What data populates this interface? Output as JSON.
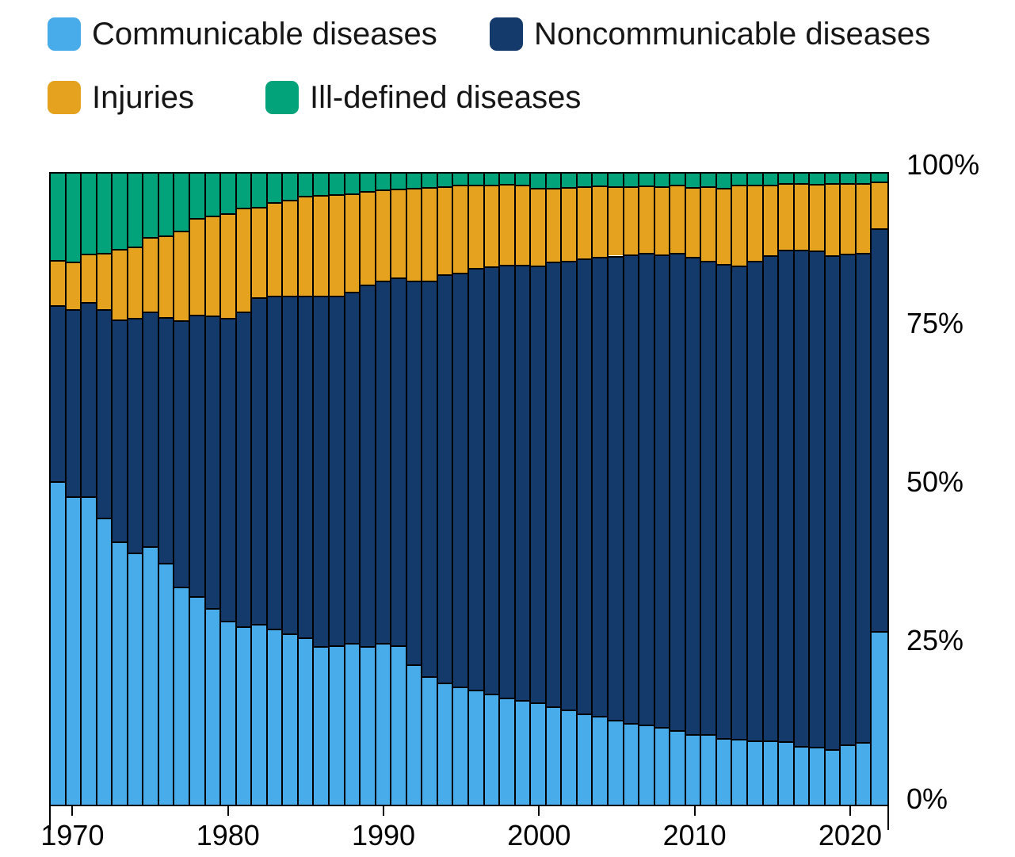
{
  "legend": {
    "items": [
      {
        "label": "Communicable diseases",
        "key": "communicable"
      },
      {
        "label": "Noncommunicable diseases",
        "key": "noncommunicable"
      },
      {
        "label": "Injuries",
        "key": "injuries"
      },
      {
        "label": "Ill-defined diseases",
        "key": "ill_defined"
      }
    ]
  },
  "colors": {
    "communicable": "#47ACE9",
    "noncommunicable": "#14396B",
    "injuries": "#E5A21E",
    "ill_defined": "#02A27A",
    "outline": "#000000",
    "text": "#161616"
  },
  "y_axis": {
    "tick_labels": [
      "100%",
      "75%",
      "50%",
      "25%",
      "0%"
    ],
    "tick_values": [
      100,
      75,
      50,
      25,
      0
    ]
  },
  "x_axis": {
    "tick_labels": [
      "1970",
      "1980",
      "1990",
      "2000",
      "2010",
      "2020"
    ],
    "tick_values": [
      1970,
      1980,
      1990,
      2000,
      2010,
      2020
    ]
  },
  "chart_data": {
    "type": "bar",
    "variant": "stacked-100-percent",
    "stack_order_bottom_to_top": [
      "Communicable diseases",
      "Noncommunicable diseases",
      "Injuries",
      "Ill-defined diseases"
    ],
    "x": [
      1969,
      1970,
      1971,
      1972,
      1973,
      1974,
      1975,
      1976,
      1977,
      1978,
      1979,
      1980,
      1981,
      1982,
      1983,
      1984,
      1985,
      1986,
      1987,
      1988,
      1989,
      1990,
      1991,
      1992,
      1993,
      1994,
      1995,
      1996,
      1997,
      1998,
      1999,
      2000,
      2001,
      2002,
      2003,
      2004,
      2005,
      2006,
      2007,
      2008,
      2009,
      2010,
      2011,
      2012,
      2013,
      2014,
      2015,
      2016,
      2017,
      2018,
      2019,
      2020,
      2021,
      2022
    ],
    "series": [
      {
        "name": "Communicable diseases",
        "color_key": "communicable",
        "values": [
          51.3,
          48.9,
          48.9,
          45.5,
          41.7,
          39.9,
          41.0,
          38.3,
          34.6,
          33.0,
          31.2,
          29.1,
          28.3,
          28.6,
          27.9,
          27.2,
          26.5,
          25.1,
          25.3,
          25.6,
          25.1,
          25.6,
          25.2,
          22.2,
          20.3,
          19.4,
          18.7,
          18.2,
          17.6,
          16.9,
          16.6,
          16.2,
          15.6,
          15.1,
          14.4,
          14.1,
          13.4,
          12.9,
          12.7,
          12.3,
          11.8,
          11.2,
          11.2,
          10.5,
          10.4,
          10.2,
          10.2,
          10.0,
          9.3,
          9.2,
          8.8,
          9.6,
          9.9,
          27.5
        ]
      },
      {
        "name": "Noncommunicable diseases",
        "color_key": "noncommunicable",
        "values": [
          27.9,
          29.6,
          30.8,
          33.0,
          35.2,
          37.2,
          37.1,
          39.0,
          42.2,
          44.7,
          46.3,
          48.0,
          49.8,
          51.8,
          52.8,
          53.4,
          54.1,
          55.5,
          55.3,
          55.7,
          57.3,
          57.5,
          58.3,
          60.9,
          62.7,
          64.6,
          65.6,
          66.8,
          67.7,
          68.6,
          69.0,
          69.2,
          70.4,
          71.1,
          72.1,
          72.7,
          73.6,
          74.3,
          74.7,
          74.9,
          75.7,
          75.6,
          75.0,
          75.2,
          75.0,
          76.0,
          76.9,
          78.0,
          78.6,
          78.6,
          78.3,
          77.7,
          77.6,
          63.8
        ]
      },
      {
        "name": "Injuries",
        "color_key": "injuries",
        "values": [
          7.1,
          7.6,
          7.6,
          9.0,
          11.2,
          11.4,
          11.8,
          12.9,
          14.2,
          15.3,
          15.8,
          16.6,
          16.5,
          14.3,
          14.8,
          15.2,
          15.9,
          16.0,
          16.1,
          15.6,
          14.8,
          14.4,
          14.1,
          14.7,
          14.9,
          14.0,
          13.9,
          13.3,
          13.0,
          12.9,
          12.7,
          12.3,
          11.8,
          11.7,
          11.5,
          11.3,
          11.0,
          10.8,
          10.7,
          10.8,
          10.7,
          11.1,
          11.8,
          12.1,
          12.9,
          12.1,
          11.2,
          10.5,
          10.6,
          10.6,
          11.4,
          11.2,
          11.0,
          7.5
        ]
      },
      {
        "name": "Ill-defined diseases",
        "color_key": "ill_defined",
        "values": [
          13.7,
          13.9,
          12.7,
          12.5,
          11.9,
          11.5,
          10.1,
          9.8,
          9.0,
          7.0,
          6.7,
          6.3,
          5.4,
          5.3,
          4.5,
          4.2,
          3.5,
          3.4,
          3.3,
          3.1,
          2.8,
          2.5,
          2.4,
          2.2,
          2.1,
          2.0,
          1.8,
          1.7,
          1.7,
          1.6,
          1.7,
          2.3,
          2.2,
          2.1,
          2.0,
          1.9,
          2.0,
          2.0,
          1.9,
          2.0,
          1.8,
          2.1,
          2.0,
          2.2,
          1.7,
          1.7,
          1.7,
          1.5,
          1.5,
          1.6,
          1.5,
          1.5,
          1.5,
          1.2
        ]
      }
    ],
    "ylim": [
      0,
      100
    ],
    "grid": false,
    "legend_position": "top-left",
    "y_axis_side": "right"
  },
  "layout_note": "54 annual bars, 1969-2022"
}
